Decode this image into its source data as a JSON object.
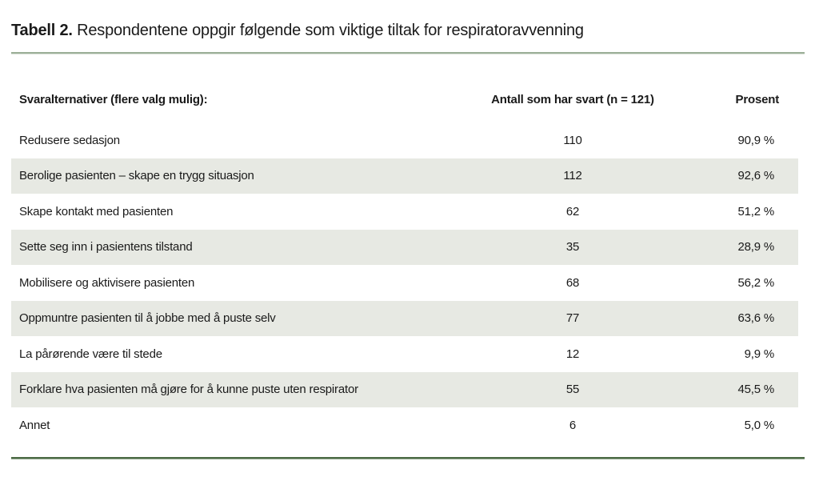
{
  "title": {
    "label": "Tabell 2.",
    "text": "Respondentene oppgir følgende som viktige tiltak for respiratoravvenning"
  },
  "table": {
    "columns": {
      "answers": "Svaralternativer (flere valg mulig):",
      "count": "Antall som har svart (n = 121)",
      "percent": "Prosent"
    },
    "rows": [
      {
        "label": "Redusere sedasjon",
        "count": "110",
        "percent": "90,9 %"
      },
      {
        "label": "Berolige pasienten – skape en trygg situasjon",
        "count": "112",
        "percent": "92,6 %"
      },
      {
        "label": "Skape kontakt med pasienten",
        "count": "62",
        "percent": "51,2 %"
      },
      {
        "label": "Sette seg inn i pasientens tilstand",
        "count": "35",
        "percent": "28,9 %"
      },
      {
        "label": "Mobilisere og aktivisere pasienten",
        "count": "68",
        "percent": "56,2 %"
      },
      {
        "label": "Oppmuntre pasienten til å jobbe med å puste selv",
        "count": "77",
        "percent": "63,6 %"
      },
      {
        "label": "La pårørende være til stede",
        "count": "12",
        "percent": "9,9 %"
      },
      {
        "label": "Forklare hva pasienten må gjøre for å kunne puste uten respirator",
        "count": "55",
        "percent": "45,5 %"
      },
      {
        "label": "Annet",
        "count": "6",
        "percent": "5,0 %"
      }
    ]
  },
  "colors": {
    "rule_top_green": "#9caf98",
    "rule_bottom_green": "#4d6b46",
    "row_alt_background": "#e7e9e3",
    "text": "#1a1a1a"
  }
}
